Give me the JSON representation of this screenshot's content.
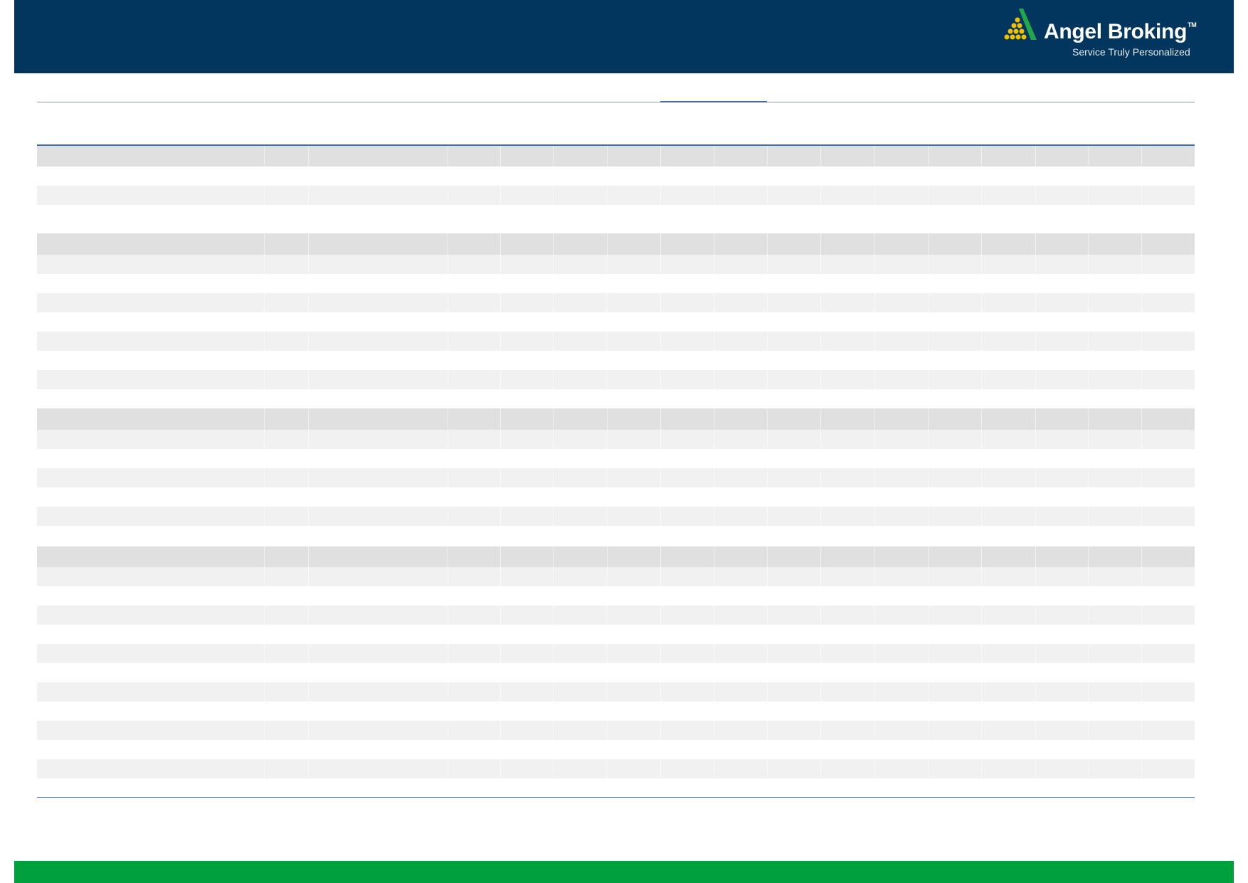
{
  "header": {
    "logo": {
      "brand": "Angel Broking",
      "trademark": "TM",
      "tagline": "Service Truly Personalized"
    },
    "background_color": "#02365e"
  },
  "footer": {
    "bar_color": "#00a03c"
  },
  "table": {
    "header_row_color": "#e0e0e0",
    "stripe_row_color": "#f1f1f1",
    "rule_color": "#3e6ea8"
  }
}
